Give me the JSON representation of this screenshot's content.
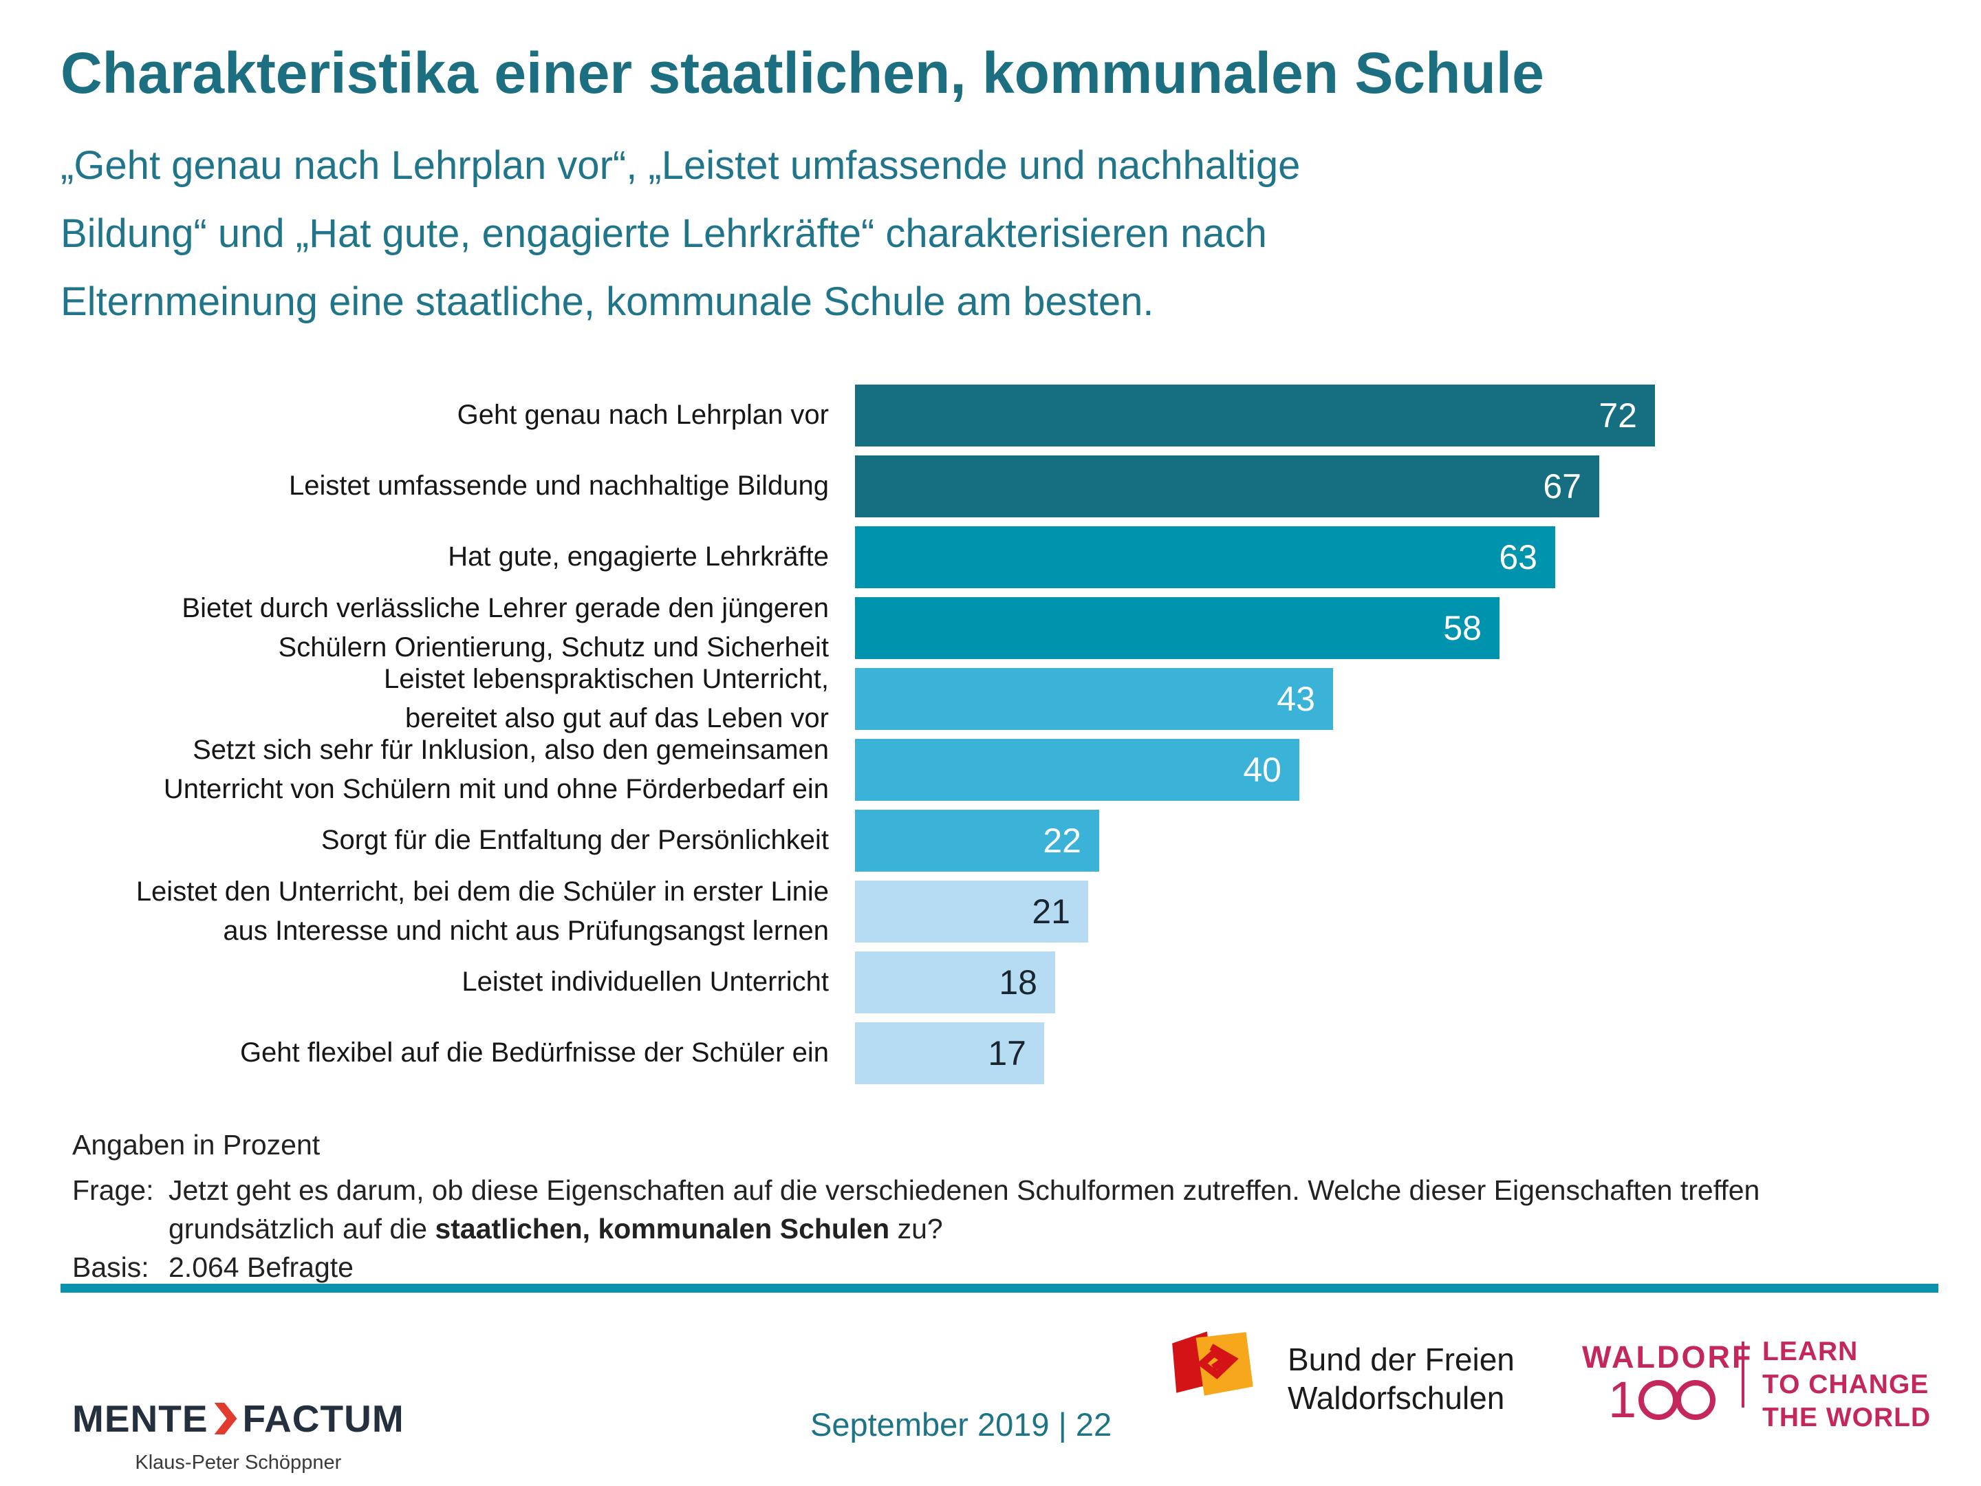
{
  "title": "Charakteristika einer staatlichen, kommunalen Schule",
  "subtitle_lines": [
    "„Geht genau nach Lehrplan vor“, „Leistet umfassende und nachhaltige",
    "Bildung“ und „Hat gute, engagierte Lehrkräfte“ charakterisieren nach",
    "Elternmeinung eine staatliche, kommunale Schule am besten."
  ],
  "chart_data": {
    "type": "bar",
    "orientation": "horizontal",
    "unit": "percent",
    "xlim": [
      0,
      72
    ],
    "categories": [
      [
        "Geht genau nach Lehrplan vor"
      ],
      [
        "Leistet umfassende und nachhaltige Bildung"
      ],
      [
        "Hat gute, engagierte Lehrkräfte"
      ],
      [
        "Bietet durch verlässliche Lehrer gerade den jüngeren",
        "Schülern Orientierung, Schutz und Sicherheit"
      ],
      [
        "Leistet lebenspraktischen Unterricht,",
        "bereitet also gut auf das Leben vor"
      ],
      [
        "Setzt sich sehr für Inklusion, also den gemeinsamen",
        "Unterricht von Schülern mit und ohne Förderbedarf ein"
      ],
      [
        "Sorgt für die Entfaltung der Persönlichkeit"
      ],
      [
        "Leistet den Unterricht, bei dem die Schüler in erster Linie",
        "aus Interesse und nicht aus Prüfungsangst lernen"
      ],
      [
        "Leistet individuellen Unterricht"
      ],
      [
        "Geht flexibel auf die Bedürfnisse der Schüler ein"
      ]
    ],
    "values": [
      72,
      67,
      63,
      58,
      43,
      40,
      22,
      21,
      18,
      17
    ],
    "bar_colors": [
      "#156f80",
      "#156f80",
      "#0093ae",
      "#0093ae",
      "#3bb3d9",
      "#3bb3d9",
      "#3bb3d9",
      "#b5dcf2",
      "#b5dcf2",
      "#b5dcf2"
    ],
    "value_label_colors": [
      "#ffffff",
      "#ffffff",
      "#ffffff",
      "#ffffff",
      "#ffffff",
      "#ffffff",
      "#ffffff",
      "#1a2530",
      "#1a2530",
      "#1a2530"
    ]
  },
  "notes": {
    "units_note": "Angaben in Prozent",
    "question_label": "Frage:",
    "question_line1": "Jetzt geht es darum, ob diese Eigenschaften auf die verschiedenen Schulformen zutreffen. Welche dieser Eigenschaften treffen",
    "question_line2_prefix": "grundsätzlich auf die ",
    "question_line2_bold": "staatlichen, kommunalen Schulen",
    "question_line2_suffix": " zu?",
    "basis_label": "Basis:",
    "basis_value": "2.064 Befragte"
  },
  "footer": {
    "brand_left": "MENTE",
    "brand_right": "FACTUM",
    "brand_sub": "Klaus-Peter Schöppner",
    "date_page": "September 2019 | 22",
    "bund_line1": "Bund der Freien",
    "bund_line2": "Waldorfschulen",
    "waldorf100_word": "WALDORF",
    "waldorf100_digit": "1",
    "claim_line1": "LEARN",
    "claim_line2": "TO CHANGE",
    "claim_line3": "THE WORLD"
  },
  "colors": {
    "title_teal": "#1c6f80",
    "subtitle_teal": "#20758a",
    "rule_teal": "#0b93ad",
    "footer_date_teal": "#1d7486",
    "waldorf_crimson": "#c4275c",
    "bund_red": "#d41317",
    "bund_orange": "#f6a71b",
    "brand_navy": "#25303e",
    "brand_red": "#e23a2e"
  }
}
